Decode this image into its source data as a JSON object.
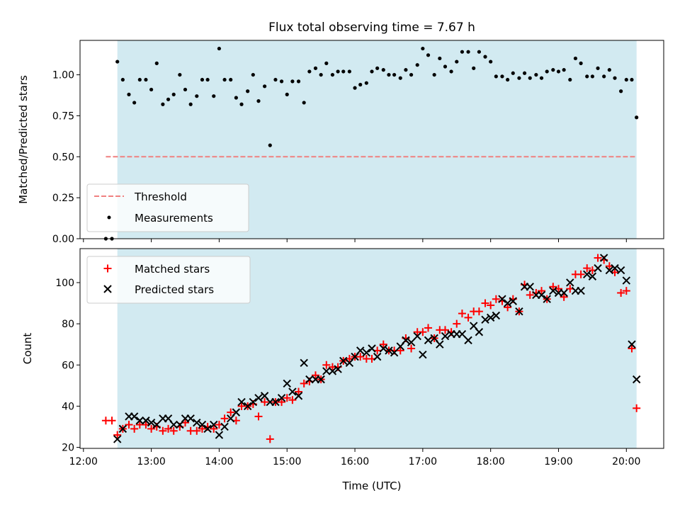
{
  "chart_data": [
    {
      "type": "scatter",
      "title": "Flux total observing time = 7.67 h",
      "ylabel": "Matched/Predicted stars",
      "xlabel": "",
      "xlim": [
        11.95,
        20.55
      ],
      "ylim": [
        0.0,
        1.21
      ],
      "yticks": [
        0.0,
        0.25,
        0.5,
        0.75,
        1.0
      ],
      "ytick_labels": [
        "0.00",
        "0.25",
        "0.50",
        "0.75",
        "1.00"
      ],
      "grid": false,
      "legend_position": "lower-left",
      "shaded_span": [
        12.5,
        20.15
      ],
      "shade_color": "#add8e6",
      "threshold": {
        "name": "Threshold",
        "y": 0.5,
        "x_range": [
          12.33,
          20.15
        ],
        "color": "#f08080",
        "style": "dashed"
      },
      "series": [
        {
          "name": "Measurements",
          "marker": "dot",
          "color": "#000000",
          "x": [
            12.33,
            12.42,
            12.5,
            12.58,
            12.67,
            12.75,
            12.83,
            12.92,
            13.0,
            13.08,
            13.17,
            13.25,
            13.33,
            13.42,
            13.5,
            13.58,
            13.67,
            13.75,
            13.83,
            13.92,
            14.0,
            14.08,
            14.17,
            14.25,
            14.33,
            14.42,
            14.5,
            14.58,
            14.67,
            14.75,
            14.83,
            14.92,
            15.0,
            15.08,
            15.17,
            15.25,
            15.33,
            15.42,
            15.5,
            15.58,
            15.67,
            15.75,
            15.83,
            15.92,
            16.0,
            16.08,
            16.17,
            16.25,
            16.33,
            16.42,
            16.5,
            16.58,
            16.67,
            16.75,
            16.83,
            16.92,
            17.0,
            17.08,
            17.17,
            17.25,
            17.33,
            17.42,
            17.5,
            17.58,
            17.67,
            17.75,
            17.83,
            17.92,
            18.0,
            18.08,
            18.17,
            18.25,
            18.33,
            18.42,
            18.5,
            18.58,
            18.67,
            18.75,
            18.83,
            18.92,
            19.0,
            19.08,
            19.17,
            19.25,
            19.33,
            19.42,
            19.5,
            19.58,
            19.67,
            19.75,
            19.83,
            19.92,
            20.0,
            20.08,
            20.15
          ],
          "y": [
            0.0,
            0.0,
            1.08,
            0.97,
            0.88,
            0.83,
            0.97,
            0.97,
            0.91,
            1.07,
            0.82,
            0.85,
            0.88,
            1.0,
            0.91,
            0.82,
            0.87,
            0.97,
            0.97,
            0.87,
            1.16,
            0.97,
            0.97,
            0.86,
            0.82,
            0.9,
            1.0,
            0.84,
            0.93,
            0.57,
            0.97,
            0.96,
            0.88,
            0.96,
            0.96,
            0.83,
            1.02,
            1.04,
            1.0,
            1.07,
            1.0,
            1.02,
            1.02,
            1.02,
            0.92,
            0.94,
            0.95,
            1.02,
            1.04,
            1.03,
            1.0,
            1.0,
            0.98,
            1.03,
            1.0,
            1.06,
            1.16,
            1.12,
            1.0,
            1.1,
            1.05,
            1.02,
            1.08,
            1.14,
            1.14,
            1.04,
            1.14,
            1.11,
            1.08,
            0.99,
            0.99,
            0.97,
            1.01,
            0.98,
            1.01,
            0.98,
            1.0,
            0.98,
            1.02,
            1.03,
            1.02,
            1.03,
            0.97,
            1.1,
            1.07,
            0.99,
            0.99,
            1.04,
            0.99,
            1.03,
            0.98,
            0.9,
            0.97,
            0.97,
            0.74
          ]
        }
      ]
    },
    {
      "type": "scatter",
      "title": "",
      "xlabel": "Time (UTC)",
      "ylabel": "Count",
      "xlim": [
        11.95,
        20.55
      ],
      "ylim": [
        19.5,
        116.5
      ],
      "xticks": [
        12,
        13,
        14,
        15,
        16,
        17,
        18,
        19,
        20
      ],
      "xtick_labels": [
        "12:00",
        "13:00",
        "14:00",
        "15:00",
        "16:00",
        "17:00",
        "18:00",
        "19:00",
        "20:00"
      ],
      "yticks": [
        20,
        40,
        60,
        80,
        100
      ],
      "ytick_labels": [
        "20",
        "40",
        "60",
        "80",
        "100"
      ],
      "grid": false,
      "legend_position": "upper-left",
      "shaded_span": [
        12.5,
        20.15
      ],
      "shade_color": "#add8e6",
      "series": [
        {
          "name": "Matched stars",
          "marker": "plus",
          "color": "#ff0000",
          "x": [
            12.33,
            12.42,
            12.5,
            12.58,
            12.67,
            12.75,
            12.83,
            12.92,
            13.0,
            13.08,
            13.17,
            13.25,
            13.33,
            13.42,
            13.5,
            13.58,
            13.67,
            13.75,
            13.83,
            13.92,
            14.0,
            14.08,
            14.17,
            14.25,
            14.33,
            14.42,
            14.5,
            14.58,
            14.67,
            14.75,
            14.83,
            14.92,
            15.0,
            15.08,
            15.17,
            15.25,
            15.33,
            15.42,
            15.5,
            15.58,
            15.67,
            15.75,
            15.83,
            15.92,
            16.0,
            16.08,
            16.17,
            16.25,
            16.33,
            16.42,
            16.5,
            16.58,
            16.67,
            16.75,
            16.83,
            16.92,
            17.0,
            17.08,
            17.17,
            17.25,
            17.33,
            17.42,
            17.5,
            17.58,
            17.67,
            17.75,
            17.83,
            17.92,
            18.0,
            18.08,
            18.17,
            18.25,
            18.33,
            18.42,
            18.5,
            18.58,
            18.67,
            18.75,
            18.83,
            18.92,
            19.0,
            19.08,
            19.17,
            19.25,
            19.33,
            19.42,
            19.5,
            19.58,
            19.67,
            19.75,
            19.83,
            19.92,
            20.0,
            20.08,
            20.15
          ],
          "y": [
            33,
            33,
            26,
            29,
            31,
            29,
            31,
            31,
            29,
            30,
            28,
            29,
            28,
            30,
            32,
            28,
            28,
            29,
            30,
            29,
            31,
            34,
            37,
            33,
            40,
            40,
            41,
            35,
            42,
            24,
            42,
            42,
            44,
            43,
            47,
            51,
            52,
            55,
            53,
            60,
            59,
            59,
            62,
            63,
            64,
            64,
            63,
            63,
            67,
            70,
            67,
            67,
            67,
            73,
            68,
            76,
            76,
            78,
            73,
            77,
            77,
            76,
            80,
            85,
            83,
            86,
            86,
            90,
            89,
            92,
            91,
            88,
            92,
            86,
            99,
            94,
            95,
            96,
            92,
            98,
            97,
            93,
            97,
            104,
            104,
            107,
            106,
            112,
            111,
            108,
            105,
            95,
            96,
            68,
            39
          ]
        },
        {
          "name": "Predicted stars",
          "marker": "x",
          "color": "#000000",
          "x": [
            12.5,
            12.58,
            12.67,
            12.75,
            12.83,
            12.92,
            13.0,
            13.08,
            13.17,
            13.25,
            13.33,
            13.42,
            13.5,
            13.58,
            13.67,
            13.75,
            13.83,
            13.92,
            14.0,
            14.08,
            14.17,
            14.25,
            14.33,
            14.42,
            14.5,
            14.58,
            14.67,
            14.75,
            14.83,
            14.92,
            15.0,
            15.08,
            15.17,
            15.25,
            15.33,
            15.42,
            15.5,
            15.58,
            15.67,
            15.75,
            15.83,
            15.92,
            16.0,
            16.08,
            16.17,
            16.25,
            16.33,
            16.42,
            16.5,
            16.58,
            16.67,
            16.75,
            16.83,
            16.92,
            17.0,
            17.08,
            17.17,
            17.25,
            17.33,
            17.42,
            17.5,
            17.58,
            17.67,
            17.75,
            17.83,
            17.92,
            18.0,
            18.08,
            18.17,
            18.25,
            18.33,
            18.42,
            18.5,
            18.58,
            18.67,
            18.75,
            18.83,
            18.92,
            19.0,
            19.08,
            19.17,
            19.25,
            19.33,
            19.42,
            19.5,
            19.58,
            19.67,
            19.75,
            19.83,
            19.92,
            20.0,
            20.08,
            20.15
          ],
          "y": [
            24,
            29,
            35,
            35,
            33,
            33,
            32,
            31,
            34,
            34,
            31,
            31,
            34,
            34,
            32,
            31,
            29,
            31,
            26,
            30,
            34,
            37,
            42,
            40,
            42,
            44,
            45,
            42,
            42,
            44,
            51,
            47,
            45,
            61,
            53,
            53,
            53,
            57,
            57,
            58,
            62,
            61,
            64,
            67,
            66,
            68,
            64,
            68,
            67,
            66,
            69,
            72,
            71,
            74,
            65,
            72,
            73,
            70,
            74,
            75,
            75,
            75,
            72,
            79,
            76,
            82,
            83,
            84,
            92,
            90,
            91,
            86,
            98,
            98,
            94,
            94,
            92,
            96,
            95,
            95,
            100,
            96,
            96,
            104,
            103,
            107,
            112,
            106,
            107,
            106,
            101,
            70,
            53
          ]
        }
      ]
    }
  ]
}
